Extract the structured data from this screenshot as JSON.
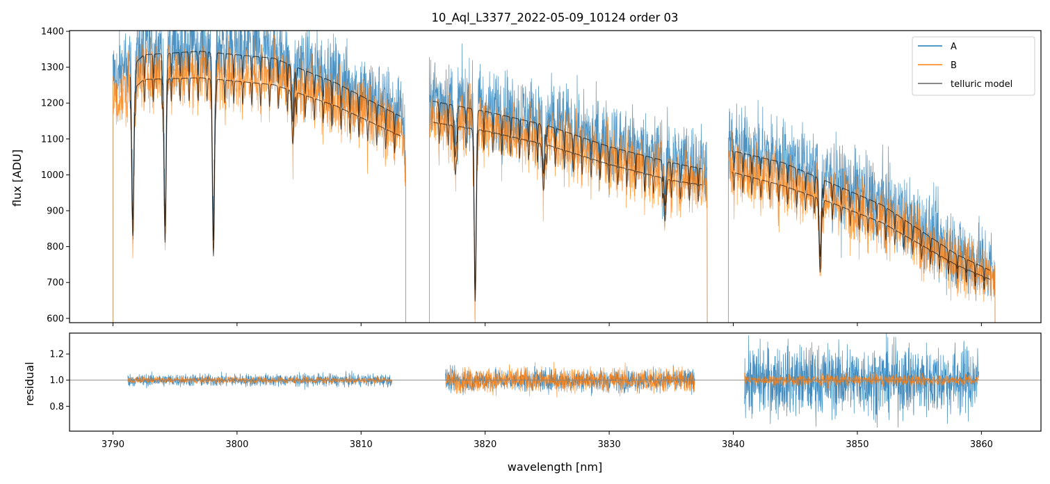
{
  "chart_data": [
    {
      "type": "line",
      "panel": "top",
      "title": "10_Aql_L3377_2022-05-09_10124  order 03",
      "xlabel": "",
      "ylabel": "flux [ADU]",
      "xlim": [
        3786.5,
        3864.8
      ],
      "ylim": [
        588,
        1402
      ],
      "yticks": [
        600,
        700,
        800,
        900,
        1000,
        1100,
        1200,
        1300,
        1400
      ],
      "xticks": [
        3790,
        3800,
        3810,
        3820,
        3830,
        3840,
        3850,
        3860
      ],
      "xtick_labels_shown": false,
      "legend_position": "top-right",
      "segments": [
        {
          "x_start": 3790.0,
          "x_end": 3813.6
        },
        {
          "x_start": 3815.5,
          "x_end": 3837.9
        },
        {
          "x_start": 3839.6,
          "x_end": 3861.1
        }
      ],
      "series": [
        {
          "name": "A",
          "color": "#1f77b4",
          "continuum": [
            [
              3790.2,
              1280
            ],
            [
              3792.5,
              1355
            ],
            [
              3797,
              1365
            ],
            [
              3803,
              1345
            ],
            [
              3808,
              1275
            ],
            [
              3813.5,
              1175
            ],
            [
              3815.6,
              1225
            ],
            [
              3820,
              1195
            ],
            [
              3825,
              1155
            ],
            [
              3830,
              1095
            ],
            [
              3835,
              1050
            ],
            [
              3837.8,
              1030
            ],
            [
              3839.7,
              1085
            ],
            [
              3844,
              1050
            ],
            [
              3848,
              990
            ],
            [
              3852,
              930
            ],
            [
              3855,
              860
            ],
            [
              3858,
              790
            ],
            [
              3861,
              740
            ]
          ],
          "noise": 55
        },
        {
          "name": "B",
          "color": "#ff7f0e",
          "continuum": [
            [
              3790.2,
              1215
            ],
            [
              3792.5,
              1285
            ],
            [
              3797,
              1290
            ],
            [
              3803,
              1270
            ],
            [
              3808,
              1210
            ],
            [
              3813.5,
              1120
            ],
            [
              3815.6,
              1165
            ],
            [
              3820,
              1140
            ],
            [
              3825,
              1100
            ],
            [
              3830,
              1045
            ],
            [
              3835,
              1000
            ],
            [
              3837.8,
              985
            ],
            [
              3839.7,
              1025
            ],
            [
              3844,
              985
            ],
            [
              3848,
              935
            ],
            [
              3852,
              880
            ],
            [
              3855,
              820
            ],
            [
              3858,
              760
            ],
            [
              3861,
              715
            ]
          ],
          "noise": 45
        },
        {
          "name": "telluric model",
          "color": "#000000"
        }
      ],
      "absorption_lines": [
        {
          "x": 3791.6,
          "depth": 0.33
        },
        {
          "x": 3794.2,
          "depth": 0.36
        },
        {
          "x": 3798.1,
          "depth": 0.39
        },
        {
          "x": 3804.5,
          "depth": 0.12
        },
        {
          "x": 3813.6,
          "depth": 0.12
        },
        {
          "x": 3817.6,
          "depth": 0.12
        },
        {
          "x": 3819.2,
          "depth": 0.4
        },
        {
          "x": 3824.7,
          "depth": 0.12
        },
        {
          "x": 3834.5,
          "depth": 0.12
        },
        {
          "x": 3847.0,
          "depth": 0.22
        }
      ]
    },
    {
      "type": "line",
      "panel": "bottom",
      "xlabel": "wavelength [nm]",
      "ylabel": "residual",
      "xlim": [
        3786.5,
        3864.8
      ],
      "ylim": [
        0.61,
        1.36
      ],
      "yticks": [
        0.8,
        1.0,
        1.2
      ],
      "ytick_labels": [
        "0.8",
        "1.0",
        "1.2"
      ],
      "xticks": [
        3790,
        3800,
        3810,
        3820,
        3830,
        3840,
        3850,
        3860
      ],
      "reference_line": 1.0,
      "segments": [
        {
          "x_start": 3791.2,
          "x_end": 3812.5,
          "amp_A": 0.045,
          "amp_B": 0.025
        },
        {
          "x_start": 3816.8,
          "x_end": 3836.9,
          "amp_A": 0.08,
          "amp_B": 0.09
        },
        {
          "x_start": 3840.9,
          "x_end": 3859.8,
          "amp_A": 0.25,
          "amp_B": 0.04
        }
      ],
      "series": [
        {
          "name": "A",
          "color": "#1f77b4"
        },
        {
          "name": "B",
          "color": "#ff7f0e"
        }
      ]
    }
  ]
}
